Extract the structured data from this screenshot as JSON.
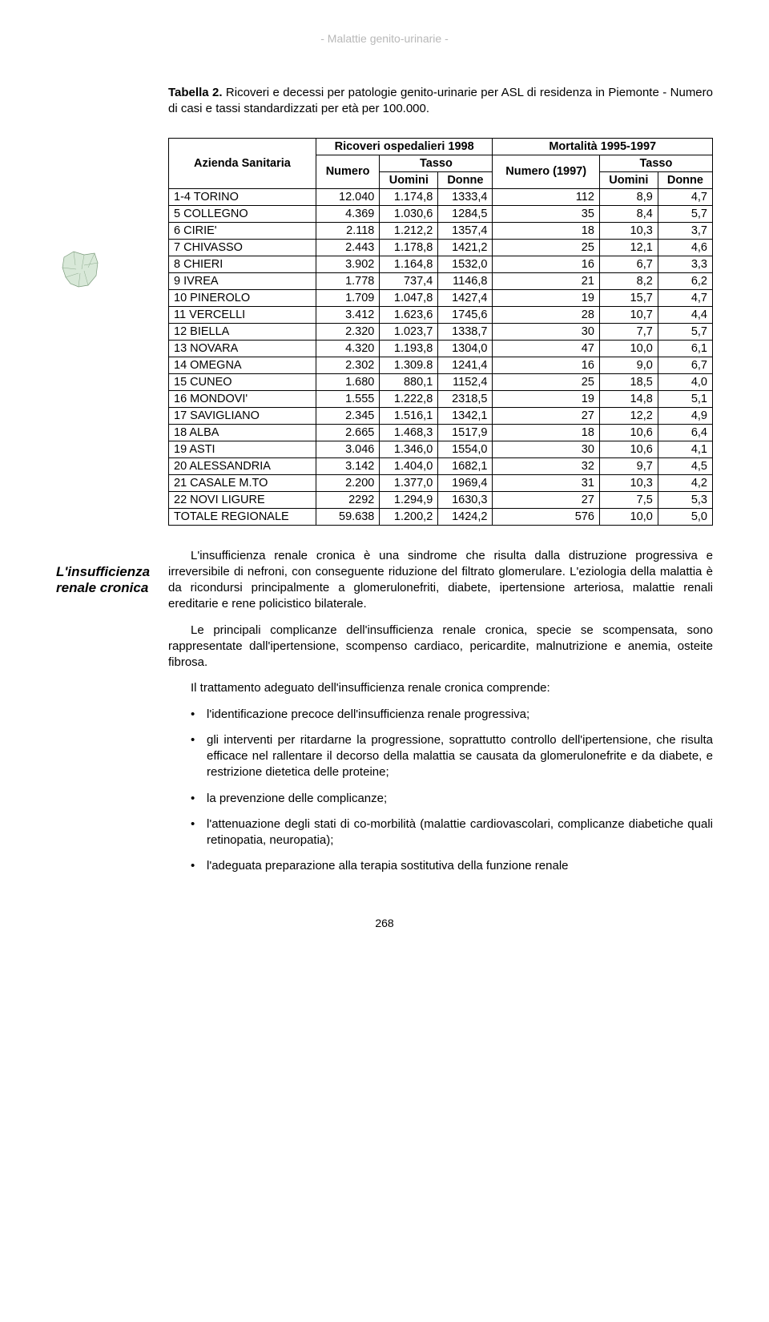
{
  "header": "- Malattie genito-urinarie -",
  "caption_bold": "Tabella 2.",
  "caption_rest": " Ricoveri e decessi per patologie genito-urinarie per ASL di residenza in Piemonte - Numero di casi e tassi standardizzati per età per 100.000.",
  "table": {
    "head": {
      "azienda": "Azienda Sanitaria",
      "ricoveri": "Ricoveri ospedalieri 1998",
      "mortalita": "Mortalità 1995-1997",
      "numero": "Numero",
      "tasso": "Tasso",
      "numero1997": "Numero (1997)",
      "uomini": "Uomini",
      "donne": "Donne"
    },
    "rows": [
      {
        "label": "1-4 TORINO",
        "n": "12.040",
        "u": "1.174,8",
        "d": "1333,4",
        "n2": "112",
        "u2": "8,9",
        "d2": "4,7"
      },
      {
        "label": "5 COLLEGNO",
        "n": "4.369",
        "u": "1.030,6",
        "d": "1284,5",
        "n2": "35",
        "u2": "8,4",
        "d2": "5,7"
      },
      {
        "label": "6 CIRIE'",
        "n": "2.118",
        "u": "1.212,2",
        "d": "1357,4",
        "n2": "18",
        "u2": "10,3",
        "d2": "3,7"
      },
      {
        "label": "7 CHIVASSO",
        "n": "2.443",
        "u": "1.178,8",
        "d": "1421,2",
        "n2": "25",
        "u2": "12,1",
        "d2": "4,6"
      },
      {
        "label": "8 CHIERI",
        "n": "3.902",
        "u": "1.164,8",
        "d": "1532,0",
        "n2": "16",
        "u2": "6,7",
        "d2": "3,3"
      },
      {
        "label": "9 IVREA",
        "n": "1.778",
        "u": "737,4",
        "d": "1146,8",
        "n2": "21",
        "u2": "8,2",
        "d2": "6,2"
      },
      {
        "label": "10 PINEROLO",
        "n": "1.709",
        "u": "1.047,8",
        "d": "1427,4",
        "n2": "19",
        "u2": "15,7",
        "d2": "4,7"
      },
      {
        "label": "11 VERCELLI",
        "n": "3.412",
        "u": "1.623,6",
        "d": "1745,6",
        "n2": "28",
        "u2": "10,7",
        "d2": "4,4"
      },
      {
        "label": "12 BIELLA",
        "n": "2.320",
        "u": "1.023,7",
        "d": "1338,7",
        "n2": "30",
        "u2": "7,7",
        "d2": "5,7"
      },
      {
        "label": "13 NOVARA",
        "n": "4.320",
        "u": "1.193,8",
        "d": "1304,0",
        "n2": "47",
        "u2": "10,0",
        "d2": "6,1"
      },
      {
        "label": "14 OMEGNA",
        "n": "2.302",
        "u": "1.309.8",
        "d": "1241,4",
        "n2": "16",
        "u2": "9,0",
        "d2": "6,7"
      },
      {
        "label": "15 CUNEO",
        "n": "1.680",
        "u": "880,1",
        "d": "1152,4",
        "n2": "25",
        "u2": "18,5",
        "d2": "4,0"
      },
      {
        "label": "16 MONDOVI'",
        "n": "1.555",
        "u": "1.222,8",
        "d": "2318,5",
        "n2": "19",
        "u2": "14,8",
        "d2": "5,1"
      },
      {
        "label": "17 SAVIGLIANO",
        "n": "2.345",
        "u": "1.516,1",
        "d": "1342,1",
        "n2": "27",
        "u2": "12,2",
        "d2": "4,9"
      },
      {
        "label": "18 ALBA",
        "n": "2.665",
        "u": "1.468,3",
        "d": "1517,9",
        "n2": "18",
        "u2": "10,6",
        "d2": "6,4"
      },
      {
        "label": "19 ASTI",
        "n": "3.046",
        "u": "1.346,0",
        "d": "1554,0",
        "n2": "30",
        "u2": "10,6",
        "d2": "4,1"
      },
      {
        "label": "20 ALESSANDRIA",
        "n": "3.142",
        "u": "1.404,0",
        "d": "1682,1",
        "n2": "32",
        "u2": "9,7",
        "d2": "4,5"
      },
      {
        "label": "21 CASALE M.TO",
        "n": "2.200",
        "u": "1.377,0",
        "d": "1969,4",
        "n2": "31",
        "u2": "10,3",
        "d2": "4,2"
      },
      {
        "label": "22 NOVI LIGURE",
        "n": "2292",
        "u": "1.294,9",
        "d": "1630,3",
        "n2": "27",
        "u2": "7,5",
        "d2": "5,3"
      },
      {
        "label": "TOTALE REGIONALE",
        "n": "59.638",
        "u": "1.200,2",
        "d": "1424,2",
        "n2": "576",
        "u2": "10,0",
        "d2": "5,0"
      }
    ]
  },
  "sidebar_title": "L'insufficienza renale cronica",
  "para1": "L'insufficienza renale cronica è una sindrome che risulta dalla distruzione progressiva e irreversibile di nefroni, con conseguente riduzione del filtrato glomerulare. L'eziologia della malattia è da ricondursi principalmente a glomerulonefriti, diabete, ipertensione arteriosa, malattie renali ereditarie e rene policistico bilaterale.",
  "para2": "Le principali complicanze dell'insufficienza renale cronica, specie se scompensata, sono rappresentate dall'ipertensione, scompenso cardiaco, pericardite, malnutrizione e anemia, osteite fibrosa.",
  "para3": "Il trattamento adeguato dell'insufficienza renale cronica comprende:",
  "bullets": [
    "l'identificazione precoce dell'insufficienza renale progressiva;",
    "gli interventi per ritardarne la progressione, soprattutto controllo dell'ipertensione, che risulta efficace nel rallentare il decorso della malattia se causata da glomerulonefrite e da diabete, e restrizione dietetica delle proteine;",
    "la prevenzione delle complicanze;",
    "l'attenuazione degli stati di co-morbilità (malattie cardiovascolari, complicanze diabetiche quali retinopatia, neuropatia);",
    "l'adeguata preparazione alla terapia sostitutiva della funzione renale"
  ],
  "page_num": "268"
}
